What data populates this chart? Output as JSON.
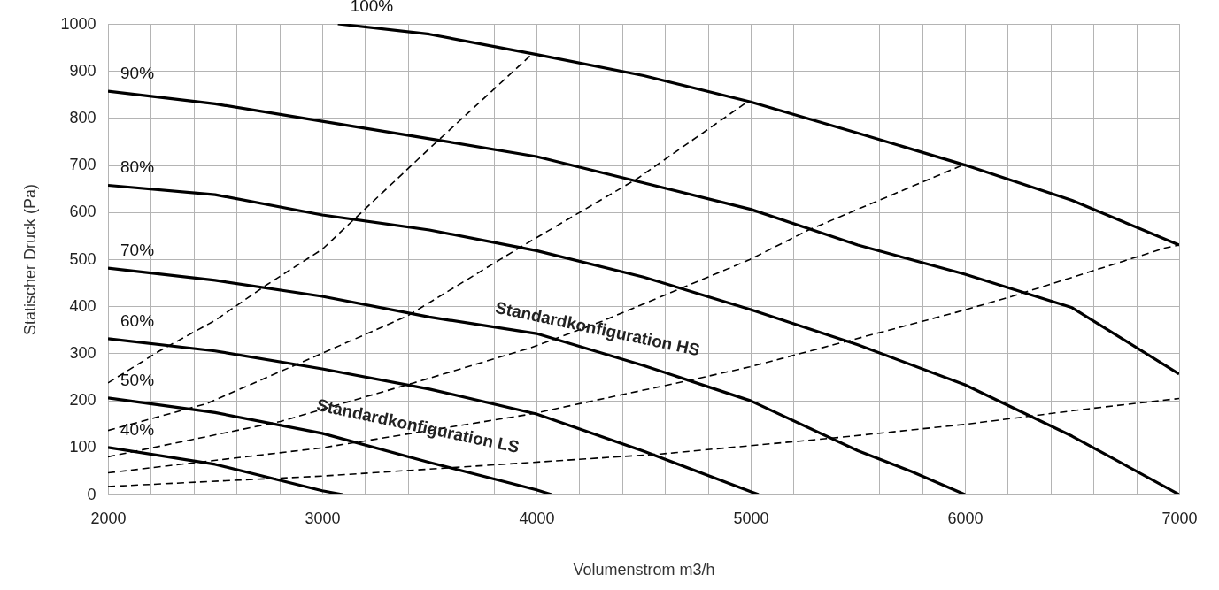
{
  "chart_data": {
    "type": "line",
    "xlabel": "Volumenstrom m3/h",
    "ylabel": "Statischer Druck (Pa)",
    "xlim": [
      2000,
      7000
    ],
    "xticks": [
      2000,
      {
        "value": 2200,
        "label": null
      },
      {
        "value": 2400,
        "label": null
      },
      {
        "value": 2600,
        "label": null
      },
      {
        "value": 2800,
        "label": null
      },
      3000,
      {
        "value": 3200,
        "label": null
      },
      {
        "value": 3400,
        "label": null
      },
      {
        "value": 3600,
        "label": null
      },
      {
        "value": 3800,
        "label": null
      },
      4000,
      {
        "value": 4200,
        "label": null
      },
      {
        "value": 4400,
        "label": null
      },
      {
        "value": 4600,
        "label": null
      },
      {
        "value": 4800,
        "label": null
      },
      5000,
      {
        "value": 5200,
        "label": null
      },
      {
        "value": 5400,
        "label": null
      },
      {
        "value": 5600,
        "label": null
      },
      {
        "value": 5800,
        "label": null
      },
      6000,
      {
        "value": 6200,
        "label": null
      },
      {
        "value": 6400,
        "label": null
      },
      {
        "value": 6600,
        "label": null
      },
      {
        "value": 6800,
        "label": null
      },
      7000
    ],
    "ylim": [
      0,
      1000
    ],
    "yticks": [
      0,
      100,
      200,
      300,
      400,
      500,
      600,
      700,
      800,
      900,
      1000
    ],
    "grid": true,
    "line_style": "solid",
    "marker": "none",
    "series": [
      {
        "name": "100%",
        "color": "#000000",
        "x": [
          3073,
          3500,
          4000,
          4500,
          5000,
          5500,
          6000,
          6500,
          7000
        ],
        "values": [
          1000,
          978,
          935,
          890,
          834,
          768,
          700,
          625,
          530
        ]
      },
      {
        "name": "90%",
        "color": "#000000",
        "x": [
          2000,
          2500,
          3000,
          3500,
          4000,
          4500,
          5000,
          5500,
          6000,
          6500,
          7000
        ],
        "values": [
          857,
          830,
          793,
          756,
          718,
          662,
          606,
          530,
          468,
          397,
          256
        ]
      },
      {
        "name": "80%",
        "color": "#000000",
        "x": [
          2000,
          2500,
          3000,
          3500,
          4000,
          4500,
          5000,
          5500,
          6000,
          6500,
          7000
        ],
        "values": [
          657,
          637,
          594,
          562,
          518,
          462,
          393,
          318,
          233,
          124,
          0
        ]
      },
      {
        "name": "70%",
        "color": "#000000",
        "x": [
          2000,
          2500,
          3000,
          3500,
          4000,
          4500,
          5000,
          5500,
          5750,
          6000
        ],
        "values": [
          481,
          455,
          421,
          377,
          342,
          274,
          199,
          93,
          49,
          0
        ]
      },
      {
        "name": "60%",
        "color": "#000000",
        "x": [
          2000,
          2500,
          3000,
          3500,
          4000,
          4500,
          5000,
          5037
        ],
        "values": [
          331,
          305,
          267,
          224,
          171,
          92,
          6,
          0
        ]
      },
      {
        "name": "50%",
        "color": "#000000",
        "x": [
          2000,
          2500,
          3000,
          3500,
          4000,
          4070
        ],
        "values": [
          205,
          174,
          130,
          68,
          10,
          0
        ]
      },
      {
        "name": "40%",
        "color": "#000000",
        "x": [
          2000,
          2500,
          3000,
          3095
        ],
        "values": [
          100,
          64,
          8,
          0
        ]
      },
      {
        "color": "#000000",
        "line_style": "dashed",
        "x": [
          2000,
          2240,
          2500,
          2736,
          3000,
          3500,
          3975
        ],
        "values": [
          237,
          305,
          370,
          444,
          521,
          735,
          934
        ]
      },
      {
        "color": "#000000",
        "line_style": "dashed",
        "x": [
          2000,
          2460,
          3000,
          3400,
          3934,
          4470,
          4974
        ],
        "values": [
          136,
          193,
          300,
          380,
          528,
          671,
          831
        ]
      },
      {
        "color": "#000000",
        "line_style": "dashed",
        "x": [
          2000,
          2804,
          3426,
          3975,
          4306,
          4995,
          5270,
          5990
        ],
        "values": [
          80,
          155,
          237,
          312,
          368,
          499,
          562,
          700
        ]
      },
      {
        "color": "#000000",
        "line_style": "dashed",
        "x": [
          2000,
          2997,
          3975,
          4719,
          4995,
          5959,
          6220,
          6936,
          7000
        ],
        "values": [
          46,
          99,
          171,
          243,
          271,
          387,
          421,
          524,
          530
        ]
      },
      {
        "color": "#000000",
        "line_style": "dashed",
        "x": [
          2000,
          2997,
          3975,
          4580,
          5407,
          6000,
          6593,
          7000
        ],
        "values": [
          17,
          39,
          68,
          86,
          121,
          149,
          183,
          204
        ]
      }
    ],
    "annotations": [
      "Standardkonfiguration HS",
      "Standardkonfiguration LS"
    ]
  }
}
